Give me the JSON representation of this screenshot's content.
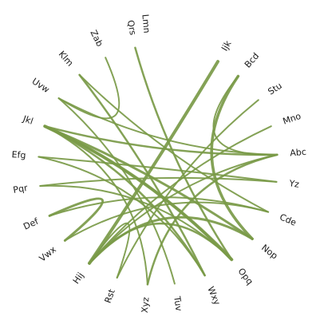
{
  "diagram": {
    "type": "chord-edge-bundle",
    "edge_color": "#7a9a48",
    "label_color": "#1a1a1a",
    "background": "#ffffff",
    "nodes": [
      {
        "id": "lmn",
        "label": "Lmn",
        "angle": -95
      },
      {
        "id": "ijk",
        "label": "Ijk",
        "angle": -60
      },
      {
        "id": "bcd",
        "label": "Bcd",
        "angle": -48
      },
      {
        "id": "stu",
        "label": "Stu",
        "angle": -33
      },
      {
        "id": "mno",
        "label": "Mno",
        "angle": -19
      },
      {
        "id": "abc",
        "label": "Abc",
        "angle": -5
      },
      {
        "id": "yz",
        "label": "Yz",
        "angle": 8
      },
      {
        "id": "cde",
        "label": "Cde",
        "angle": 23
      },
      {
        "id": "nop",
        "label": "Nop",
        "angle": 38
      },
      {
        "id": "opq",
        "label": "Opq",
        "angle": 52
      },
      {
        "id": "wxy",
        "label": "Wxy",
        "angle": 67
      },
      {
        "id": "tuv",
        "label": "Tuv",
        "angle": 82
      },
      {
        "id": "xyz",
        "label": "Xyz",
        "angle": 95
      },
      {
        "id": "rst",
        "label": "Rst",
        "angle": 110
      },
      {
        "id": "hij",
        "label": "Hij",
        "angle": 125
      },
      {
        "id": "vwx",
        "label": "Vwx",
        "angle": 141
      },
      {
        "id": "def",
        "label": "Def",
        "angle": 155
      },
      {
        "id": "pqr",
        "label": "Pqr",
        "angle": 170
      },
      {
        "id": "efg",
        "label": "Efg",
        "angle": 184
      },
      {
        "id": "jkl",
        "label": "Jkl",
        "angle": 199
      },
      {
        "id": "uvw",
        "label": "Uvw",
        "angle": 214
      },
      {
        "id": "klm",
        "label": "Klm",
        "angle": 229
      },
      {
        "id": "zab",
        "label": "Zab",
        "angle": 244
      },
      {
        "id": "qrs",
        "label": "Qrs",
        "angle": 259
      }
    ],
    "edges": [
      {
        "source": "ijk",
        "target": "hij",
        "weight": 4
      },
      {
        "source": "bcd",
        "target": "nop",
        "weight": 3.5
      },
      {
        "source": "qrs",
        "target": "opq",
        "weight": 2.5
      },
      {
        "source": "jkl",
        "target": "opq",
        "weight": 4
      },
      {
        "source": "jkl",
        "target": "nop",
        "weight": 3
      },
      {
        "source": "jkl",
        "target": "abc",
        "weight": 2.5
      },
      {
        "source": "jkl",
        "target": "wxy",
        "weight": 2.5
      },
      {
        "source": "klm",
        "target": "wxy",
        "weight": 2.5
      },
      {
        "source": "klm",
        "target": "cde",
        "weight": 2
      },
      {
        "source": "zab",
        "target": "uvw",
        "weight": 2
      },
      {
        "source": "uvw",
        "target": "abc",
        "weight": 2
      },
      {
        "source": "stu",
        "target": "rst",
        "weight": 2
      },
      {
        "source": "mno",
        "target": "hij",
        "weight": 2
      },
      {
        "source": "abc",
        "target": "xyz",
        "weight": 2.5
      },
      {
        "source": "abc",
        "target": "bcd",
        "weight": 2
      },
      {
        "source": "yz",
        "target": "efg",
        "weight": 2
      },
      {
        "source": "yz",
        "target": "pqr",
        "weight": 2
      },
      {
        "source": "cde",
        "target": "def",
        "weight": 2
      },
      {
        "source": "nop",
        "target": "hij",
        "weight": 3
      },
      {
        "source": "opq",
        "target": "hij",
        "weight": 2.5
      },
      {
        "source": "opq",
        "target": "pqr",
        "weight": 2
      },
      {
        "source": "opq",
        "target": "jkl",
        "weight": 2
      },
      {
        "source": "wxy",
        "target": "efg",
        "weight": 2
      },
      {
        "source": "tuv",
        "target": "uvw",
        "weight": 2
      },
      {
        "source": "xyz",
        "target": "jkl",
        "weight": 2
      },
      {
        "source": "rst",
        "target": "hij",
        "weight": 2
      },
      {
        "source": "vwx",
        "target": "def",
        "weight": 3
      },
      {
        "source": "hij",
        "target": "abc",
        "weight": 2
      },
      {
        "source": "vwx",
        "target": "cde",
        "weight": 2
      }
    ]
  }
}
